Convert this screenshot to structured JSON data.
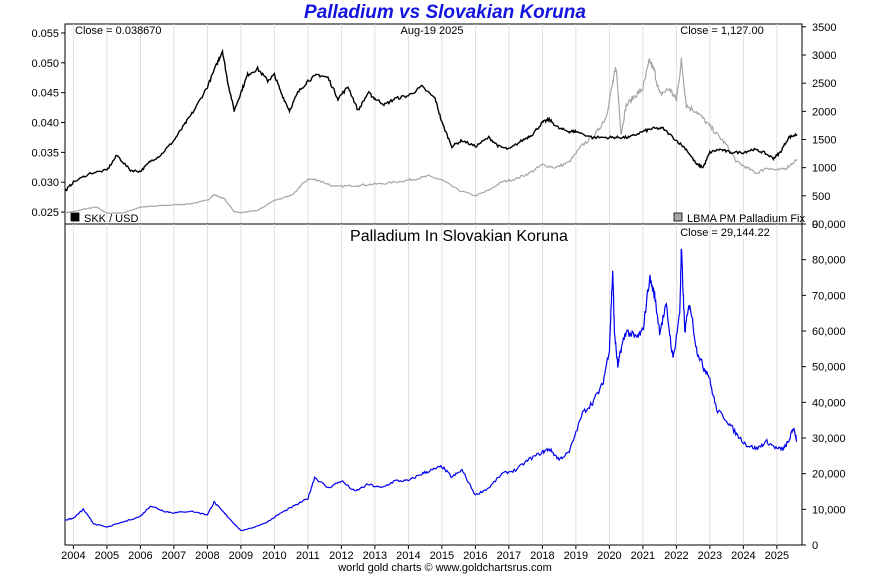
{
  "header": {
    "title": "Palladium vs Slovakian Koruna",
    "footer": "world gold charts © www.goldchartsrus.com"
  },
  "colors": {
    "skk": "#000000",
    "palladium": "#a6a6a6",
    "ratio": "#0000ee"
  },
  "chart_data": [
    {
      "type": "line",
      "title": "",
      "top_left_label": "Close = 0.038670",
      "top_center_label": "Aug-19  2025",
      "top_right_label": "Close = 1,127.00",
      "xlim": [
        2003.75,
        2025.75
      ],
      "x_ticks": [
        "2004",
        "2005",
        "2006",
        "2007",
        "2008",
        "2009",
        "2010",
        "2011",
        "2012",
        "2013",
        "2014",
        "2015",
        "2016",
        "2017",
        "2018",
        "2019",
        "2020",
        "2021",
        "2022",
        "2023",
        "2024",
        "2025"
      ],
      "y_left": {
        "lim": [
          0.023,
          0.0565
        ],
        "ticks": [
          "0.025",
          "0.030",
          "0.035",
          "0.040",
          "0.045",
          "0.050",
          "0.055"
        ]
      },
      "y_right": {
        "lim": [
          0,
          3550
        ],
        "ticks": [
          "0",
          "500",
          "1000",
          "1500",
          "2000",
          "2500",
          "3000",
          "3500"
        ]
      },
      "legend_placement": "bottom",
      "series": [
        {
          "name": "SKK / USD",
          "axis": "left",
          "x": [
            2003.75,
            2004.0,
            2004.5,
            2005.0,
            2005.3,
            2005.7,
            2006.0,
            2006.3,
            2006.6,
            2007.0,
            2007.3,
            2007.6,
            2008.0,
            2008.3,
            2008.45,
            2008.6,
            2008.8,
            2009.0,
            2009.2,
            2009.5,
            2009.8,
            2010.0,
            2010.2,
            2010.45,
            2010.7,
            2011.0,
            2011.3,
            2011.6,
            2011.9,
            2012.2,
            2012.5,
            2012.8,
            2013.0,
            2013.3,
            2013.6,
            2014.0,
            2014.4,
            2014.8,
            2015.0,
            2015.3,
            2015.6,
            2016.0,
            2016.4,
            2016.7,
            2017.0,
            2017.4,
            2017.7,
            2018.0,
            2018.2,
            2018.5,
            2018.8,
            2019.0,
            2019.5,
            2020.0,
            2020.3,
            2020.6,
            2021.0,
            2021.3,
            2021.6,
            2022.0,
            2022.3,
            2022.6,
            2022.8,
            2023.0,
            2023.3,
            2023.6,
            2024.0,
            2024.3,
            2024.6,
            2024.9,
            2025.1,
            2025.35,
            2025.6
          ],
          "y": [
            0.0285,
            0.03,
            0.0315,
            0.032,
            0.0345,
            0.032,
            0.0318,
            0.0335,
            0.0345,
            0.037,
            0.0395,
            0.042,
            0.046,
            0.05,
            0.052,
            0.047,
            0.042,
            0.045,
            0.048,
            0.049,
            0.047,
            0.048,
            0.045,
            0.042,
            0.045,
            0.047,
            0.048,
            0.0475,
            0.044,
            0.046,
            0.042,
            0.045,
            0.044,
            0.043,
            0.044,
            0.0445,
            0.046,
            0.044,
            0.04,
            0.036,
            0.037,
            0.036,
            0.0375,
            0.036,
            0.0355,
            0.037,
            0.038,
            0.04,
            0.0405,
            0.039,
            0.0385,
            0.0385,
            0.0375,
            0.0375,
            0.0375,
            0.0375,
            0.0385,
            0.039,
            0.039,
            0.037,
            0.0355,
            0.033,
            0.0325,
            0.035,
            0.0355,
            0.035,
            0.035,
            0.0355,
            0.035,
            0.034,
            0.035,
            0.0375,
            0.038
          ]
        },
        {
          "name": "LBMA PM Palladium Fix",
          "axis": "right",
          "x": [
            2003.75,
            2004.0,
            2004.3,
            2004.7,
            2005.0,
            2005.5,
            2006.0,
            2006.5,
            2007.0,
            2007.5,
            2008.0,
            2008.2,
            2008.5,
            2008.8,
            2009.0,
            2009.5,
            2010.0,
            2010.5,
            2011.0,
            2011.3,
            2011.8,
            2012.3,
            2012.8,
            2013.3,
            2013.8,
            2014.2,
            2014.6,
            2015.0,
            2015.5,
            2016.0,
            2016.4,
            2016.8,
            2017.2,
            2017.6,
            2018.0,
            2018.4,
            2018.8,
            2019.2,
            2019.6,
            2019.9,
            2020.1,
            2020.2,
            2020.35,
            2020.5,
            2020.8,
            2021.0,
            2021.2,
            2021.35,
            2021.5,
            2021.8,
            2022.0,
            2022.15,
            2022.3,
            2022.6,
            2022.9,
            2023.2,
            2023.5,
            2023.8,
            2024.1,
            2024.4,
            2024.7,
            2025.0,
            2025.3,
            2025.6
          ],
          "y": [
            200,
            220,
            260,
            300,
            190,
            200,
            300,
            320,
            340,
            360,
            420,
            520,
            450,
            220,
            200,
            240,
            420,
            500,
            800,
            780,
            660,
            680,
            700,
            720,
            760,
            800,
            850,
            780,
            600,
            500,
            600,
            750,
            800,
            900,
            1050,
            1000,
            1100,
            1400,
            1600,
            1900,
            2500,
            2800,
            1600,
            2100,
            2300,
            2400,
            2900,
            2700,
            2300,
            2400,
            2200,
            2900,
            2100,
            2000,
            1800,
            1600,
            1400,
            1100,
            1000,
            900,
            1000,
            950,
            1000,
            1150
          ]
        }
      ]
    },
    {
      "type": "line",
      "title": "Palladium In Slovakian Koruna",
      "top_right_label": "Close = 29,144.22",
      "xlim": [
        2003.75,
        2025.75
      ],
      "x_ticks": [
        "2004",
        "2005",
        "2006",
        "2007",
        "2008",
        "2009",
        "2010",
        "2011",
        "2012",
        "2013",
        "2014",
        "2015",
        "2016",
        "2017",
        "2018",
        "2019",
        "2020",
        "2021",
        "2022",
        "2023",
        "2024",
        "2025"
      ],
      "y_right": {
        "lim": [
          0,
          90000
        ],
        "ticks": [
          "0",
          "10,000",
          "20,000",
          "30,000",
          "40,000",
          "50,000",
          "60,000",
          "70,000",
          "80,000",
          "90,000"
        ]
      },
      "series": [
        {
          "name": "",
          "axis": "right",
          "x": [
            2003.75,
            2004.0,
            2004.3,
            2004.6,
            2005.0,
            2005.5,
            2006.0,
            2006.3,
            2006.7,
            2007.0,
            2007.5,
            2008.0,
            2008.2,
            2008.5,
            2008.8,
            2009.0,
            2009.4,
            2009.8,
            2010.2,
            2010.6,
            2011.0,
            2011.2,
            2011.6,
            2012.0,
            2012.4,
            2012.8,
            2013.2,
            2013.6,
            2014.0,
            2014.4,
            2014.7,
            2015.0,
            2015.3,
            2015.6,
            2016.0,
            2016.4,
            2016.8,
            2017.2,
            2017.6,
            2018.0,
            2018.2,
            2018.5,
            2018.8,
            2019.2,
            2019.5,
            2019.8,
            2020.0,
            2020.1,
            2020.15,
            2020.25,
            2020.35,
            2020.5,
            2020.8,
            2021.0,
            2021.2,
            2021.35,
            2021.5,
            2021.7,
            2021.9,
            2022.1,
            2022.15,
            2022.25,
            2022.4,
            2022.6,
            2022.8,
            2022.95,
            2023.2,
            2023.5,
            2023.8,
            2024.1,
            2024.4,
            2024.7,
            2025.0,
            2025.2,
            2025.35,
            2025.5,
            2025.6
          ],
          "y": [
            7000,
            7500,
            10000,
            6000,
            5000,
            6500,
            8000,
            11000,
            9500,
            9000,
            9500,
            8500,
            12000,
            9000,
            6000,
            4000,
            5000,
            6500,
            9000,
            11000,
            13000,
            19000,
            16000,
            18000,
            15000,
            17000,
            16000,
            18000,
            18000,
            20000,
            21000,
            22000,
            19000,
            21000,
            14000,
            16000,
            20000,
            21000,
            24000,
            26000,
            27000,
            24000,
            26000,
            37000,
            40000,
            45000,
            55000,
            77000,
            60000,
            50000,
            55000,
            60000,
            58000,
            60000,
            75000,
            70000,
            60000,
            67000,
            52000,
            65000,
            83000,
            60000,
            68000,
            55000,
            50000,
            48000,
            38000,
            35000,
            31000,
            28000,
            27000,
            29000,
            27000,
            27000,
            29000,
            33000,
            29000
          ]
        }
      ]
    }
  ]
}
